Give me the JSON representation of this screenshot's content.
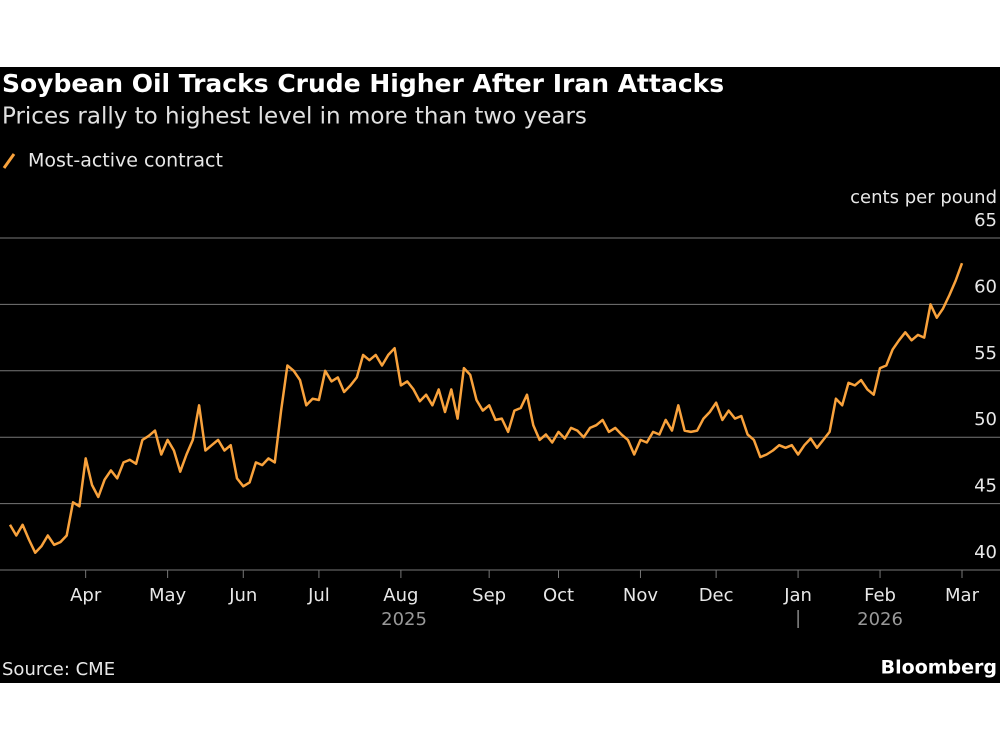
{
  "chart_data": {
    "type": "line",
    "title": "Soybean Oil Tracks Crude Higher After Iran Attacks",
    "subtitle": "Prices rally to highest level in more than two years",
    "y_axis_label": "cents per pound",
    "source": "Source: CME",
    "brand": "Bloomberg",
    "year_labels": [
      "2025",
      "2026"
    ],
    "categories": [
      null,
      null,
      null,
      null,
      null,
      null,
      null,
      null,
      null,
      null,
      null,
      null,
      "Apr",
      null,
      null,
      null,
      null,
      null,
      null,
      null,
      null,
      null,
      null,
      null,
      null,
      "May",
      null,
      null,
      null,
      null,
      null,
      null,
      null,
      null,
      null,
      null,
      null,
      "Jun",
      null,
      null,
      null,
      null,
      null,
      null,
      null,
      null,
      null,
      null,
      null,
      "Jul",
      null,
      null,
      null,
      null,
      null,
      null,
      null,
      null,
      null,
      null,
      null,
      null,
      "Aug",
      null,
      null,
      null,
      null,
      null,
      null,
      null,
      null,
      null,
      null,
      null,
      null,
      null,
      "Sep",
      null,
      null,
      null,
      null,
      null,
      null,
      null,
      null,
      null,
      null,
      "Oct",
      null,
      null,
      null,
      null,
      null,
      null,
      null,
      null,
      null,
      null,
      null,
      null,
      "Nov",
      null,
      null,
      null,
      null,
      null,
      null,
      null,
      null,
      null,
      null,
      null,
      "Dec",
      null,
      null,
      null,
      null,
      null,
      null,
      null,
      null,
      null,
      null,
      null,
      null,
      "Jan",
      null,
      null,
      null,
      null,
      null,
      null,
      null,
      null,
      null,
      null,
      null,
      null,
      "Feb",
      null,
      null,
      null,
      null,
      null,
      null,
      null,
      null,
      null,
      null,
      null,
      null,
      "Mar"
    ],
    "series": [
      {
        "name": "Most-active contract",
        "color": "#f9a23c",
        "values": [
          43.4,
          42.6,
          43.4,
          42.3,
          41.3,
          41.8,
          42.6,
          41.9,
          42.1,
          42.6,
          45.1,
          44.8,
          48.4,
          46.4,
          45.5,
          46.8,
          47.5,
          46.9,
          48.1,
          48.3,
          48.0,
          49.8,
          50.1,
          50.5,
          48.7,
          49.8,
          49.0,
          47.4,
          48.7,
          49.8,
          52.4,
          49.0,
          49.4,
          49.8,
          49.0,
          49.4,
          46.9,
          46.3,
          46.6,
          48.1,
          47.9,
          48.4,
          48.1,
          52.0,
          55.4,
          55.0,
          54.3,
          52.4,
          52.9,
          52.8,
          55.0,
          54.2,
          54.5,
          53.4,
          53.9,
          54.5,
          56.2,
          55.8,
          56.2,
          55.4,
          56.2,
          56.7,
          53.9,
          54.2,
          53.6,
          52.7,
          53.2,
          52.4,
          53.6,
          51.9,
          53.6,
          51.4,
          55.2,
          54.7,
          52.8,
          52.0,
          52.4,
          51.3,
          51.4,
          50.4,
          52.0,
          52.2,
          53.2,
          50.9,
          49.8,
          50.2,
          49.6,
          50.4,
          49.9,
          50.7,
          50.5,
          50.0,
          50.7,
          50.9,
          51.3,
          50.4,
          50.7,
          50.2,
          49.8,
          48.7,
          49.8,
          49.6,
          50.4,
          50.2,
          51.3,
          50.5,
          52.4,
          50.5,
          50.4,
          50.5,
          51.4,
          51.9,
          52.6,
          51.3,
          52.0,
          51.4,
          51.6,
          50.2,
          49.8,
          48.5,
          48.7,
          49.0,
          49.4,
          49.2,
          49.4,
          48.7,
          49.4,
          49.9,
          49.2,
          49.8,
          50.4,
          52.9,
          52.4,
          54.1,
          53.9,
          54.3,
          53.6,
          53.2,
          55.2,
          55.4,
          56.6,
          57.3,
          57.9,
          57.3,
          57.7,
          57.5,
          60.0,
          59.0,
          59.7,
          60.7,
          61.8,
          63.1
        ]
      }
    ],
    "ylim": [
      40,
      65
    ],
    "yticks": [
      40,
      45,
      50,
      55,
      60,
      65
    ],
    "grid": true
  }
}
